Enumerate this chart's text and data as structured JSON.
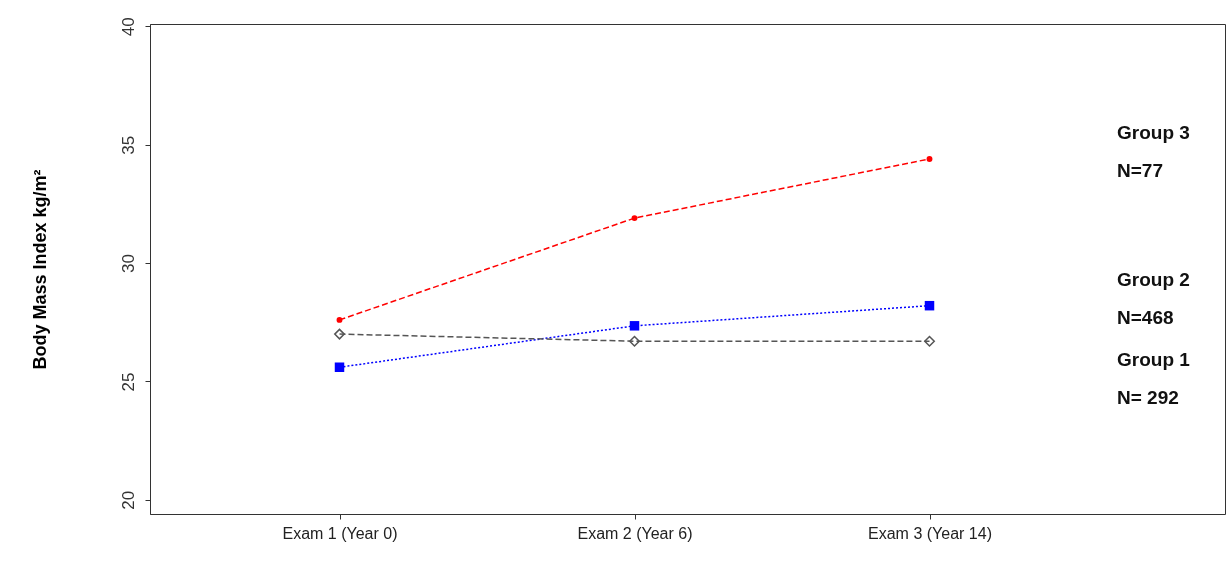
{
  "chart_data": {
    "type": "line",
    "ylabel": "Body Mass Index kg/m²",
    "categories": [
      "Exam 1 (Year 0)",
      "Exam 2 (Year 6)",
      "Exam 3 (Year 14)"
    ],
    "ylim": [
      19.4,
      40.1
    ],
    "yticks": [
      20,
      25,
      30,
      35,
      40
    ],
    "grid": false,
    "series": [
      {
        "name": "Group 3",
        "color": "#ff0000",
        "values": [
          27.6,
          31.9,
          34.4
        ],
        "marker": "circle",
        "line_style": "dashed"
      },
      {
        "name": "Group 2",
        "color": "#0000ff",
        "values": [
          25.6,
          27.35,
          28.2
        ],
        "marker": "square",
        "line_style": "dotted"
      },
      {
        "name": "Group 1",
        "color": "#555555",
        "values": [
          27.0,
          26.7,
          26.7
        ],
        "marker": "diamond",
        "line_style": "dashed"
      }
    ],
    "annotations": [
      "N=77",
      "N=468",
      "N= 292"
    ]
  }
}
